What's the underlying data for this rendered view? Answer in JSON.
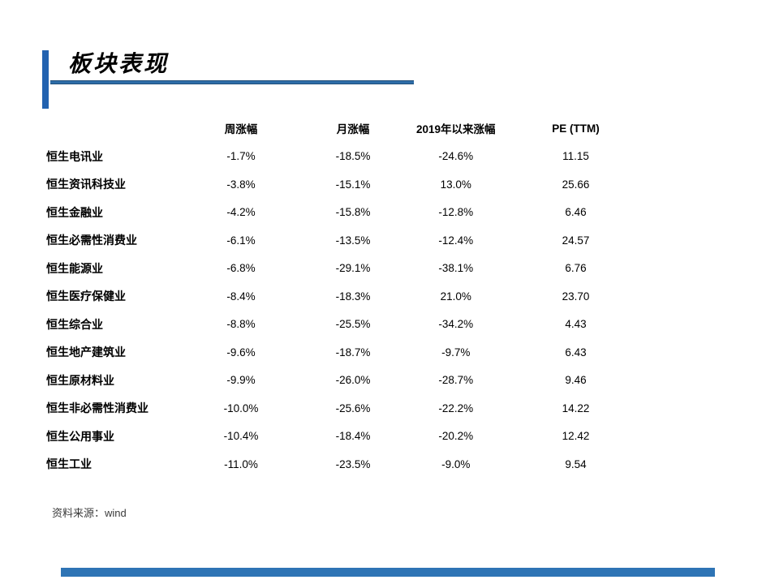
{
  "slide": {
    "title": "板块表现",
    "source_note": "资料来源：wind"
  },
  "accent_colors": {
    "title_bar": "#2262B0",
    "title_line": "#2E6DA8",
    "footer_bar": "#2E74B5"
  },
  "table": {
    "headers": [
      "周涨幅",
      "月涨幅",
      "2019年以来涨幅",
      "PE (TTM)"
    ],
    "rows": [
      {
        "label": "恒生电讯业",
        "values": [
          "-1.7%",
          "-18.5%",
          "-24.6%",
          "11.15"
        ]
      },
      {
        "label": "恒生资讯科技业",
        "values": [
          "-3.8%",
          "-15.1%",
          "13.0%",
          "25.66"
        ]
      },
      {
        "label": "恒生金融业",
        "values": [
          "-4.2%",
          "-15.8%",
          "-12.8%",
          "6.46"
        ]
      },
      {
        "label": "恒生必需性消费业",
        "values": [
          "-6.1%",
          "-13.5%",
          "-12.4%",
          "24.57"
        ]
      },
      {
        "label": "恒生能源业",
        "values": [
          "-6.8%",
          "-29.1%",
          "-38.1%",
          "6.76"
        ]
      },
      {
        "label": "恒生医疗保健业",
        "values": [
          "-8.4%",
          "-18.3%",
          "21.0%",
          "23.70"
        ]
      },
      {
        "label": "恒生综合业",
        "values": [
          "-8.8%",
          "-25.5%",
          "-34.2%",
          "4.43"
        ]
      },
      {
        "label": "恒生地产建筑业",
        "values": [
          "-9.6%",
          "-18.7%",
          "-9.7%",
          "6.43"
        ]
      },
      {
        "label": "恒生原材料业",
        "values": [
          "-9.9%",
          "-26.0%",
          "-28.7%",
          "9.46"
        ]
      },
      {
        "label": "恒生非必需性消费业",
        "values": [
          "-10.0%",
          "-25.6%",
          "-22.2%",
          "14.22"
        ]
      },
      {
        "label": "恒生公用事业",
        "values": [
          "-10.4%",
          "-18.4%",
          "-20.2%",
          "12.42"
        ]
      },
      {
        "label": "恒生工业",
        "values": [
          "-11.0%",
          "-23.5%",
          "-9.0%",
          "9.54"
        ]
      }
    ]
  }
}
